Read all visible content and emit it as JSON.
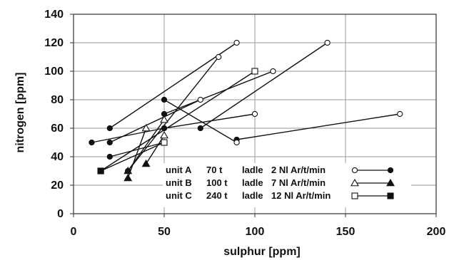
{
  "chart_data": {
    "type": "scatter",
    "title": "",
    "xlabel": "sulphur [ppm]",
    "ylabel": "nitrogen [ppm]",
    "xlim": [
      0,
      200
    ],
    "ylim": [
      0,
      140
    ],
    "x_ticks": [
      "0",
      "50",
      "100",
      "150",
      "200"
    ],
    "y_ticks": [
      "0",
      "20",
      "40",
      "60",
      "80",
      "100",
      "120",
      "140"
    ],
    "grid": true,
    "legend_position": "bottom-right",
    "series": [
      {
        "name": "unit A 70 t ladle 2 Nl Ar/t/min",
        "marker": "circle",
        "segments": [
          [
            [
              10,
              50
            ],
            [
              50,
              60
            ]
          ],
          [
            [
              20,
              50
            ],
            [
              70,
              80
            ]
          ],
          [
            [
              20,
              60
            ],
            [
              90,
              120
            ]
          ],
          [
            [
              20,
              40
            ],
            [
              50,
              50
            ]
          ],
          [
            [
              50,
              60
            ],
            [
              100,
              70
            ]
          ],
          [
            [
              50,
              70
            ],
            [
              110,
              100
            ]
          ],
          [
            [
              70,
              60
            ],
            [
              140,
              120
            ]
          ],
          [
            [
              90,
              52
            ],
            [
              180,
              70
            ]
          ],
          [
            [
              50,
              80
            ],
            [
              90,
              50
            ]
          ],
          [
            [
              30,
              30
            ],
            [
              80,
              110
            ]
          ]
        ]
      },
      {
        "name": "unit B 100 t ladle 7 Nl Ar/t/min",
        "marker": "triangle",
        "segments": [
          [
            [
              30,
              25
            ],
            [
              40,
              60
            ]
          ],
          [
            [
              30,
              30
            ],
            [
              50,
              66
            ]
          ],
          [
            [
              40,
              35
            ],
            [
              50,
              55
            ]
          ]
        ]
      },
      {
        "name": "unit C 240 t ladle 12 Nl Ar/t/min",
        "marker": "square",
        "segments": [
          [
            [
              15,
              30
            ],
            [
              100,
              100
            ]
          ],
          [
            [
              15,
              30
            ],
            [
              50,
              50
            ]
          ]
        ]
      }
    ],
    "legend": [
      {
        "unit": "unit A",
        "tons": "70 t",
        "ladle": "ladle",
        "rate": "2 Nl Ar/t/min",
        "marker": "circle"
      },
      {
        "unit": "unit B",
        "tons": "100 t",
        "ladle": "ladle",
        "rate": "7 Nl Ar/t/min",
        "marker": "triangle"
      },
      {
        "unit": "unit C",
        "tons": "240 t",
        "ladle": "ladle",
        "rate": "12 Nl Ar/t/min",
        "marker": "square"
      }
    ]
  }
}
